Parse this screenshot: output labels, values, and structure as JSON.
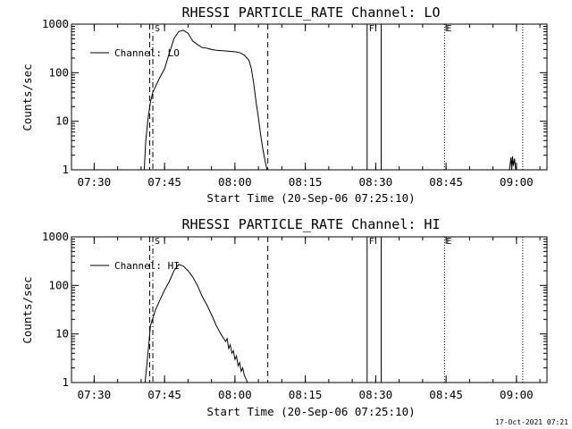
{
  "timestamp": "17-Oct-2021 07:21",
  "chart_data": [
    {
      "type": "line",
      "title": "RHESSI PARTICLE_RATE Channel: LO",
      "xlabel": "Start Time (20-Sep-06 07:25:10)",
      "ylabel": "Counts/sec",
      "y_scale": "log",
      "ylim": [
        1,
        1000
      ],
      "xlim": [
        "07:25:10",
        "09:06:30"
      ],
      "x_ticks": [
        "07:30",
        "07:45",
        "08:00",
        "08:15",
        "08:30",
        "08:45",
        "09:00"
      ],
      "y_ticks": [
        "1",
        "10",
        "100",
        "1000"
      ],
      "legend": {
        "placement": "top-left",
        "label": "Channel: LO"
      },
      "markers": [
        {
          "label": "S",
          "time": "07:42:30",
          "style": "dash-dot"
        },
        {
          "label": "F",
          "time": "08:28:10",
          "style": "solid"
        },
        {
          "label": "E",
          "time": "08:44:40",
          "style": "dotted"
        }
      ],
      "interval_lines": [
        {
          "time": "07:41:50",
          "style": "dashed"
        },
        {
          "time": "08:07:00",
          "style": "dashed"
        },
        {
          "time": "08:31:10",
          "style": "solid"
        },
        {
          "time": "09:01:20",
          "style": "dotted"
        }
      ],
      "series": [
        {
          "name": "Channel: LO",
          "segments": [
            {
              "x": [
                "07:40:40",
                "07:41:00",
                "07:41:30",
                "07:42:00",
                "07:42:30",
                "07:43:00",
                "07:44:00",
                "07:45:00",
                "07:46:00",
                "07:47:00",
                "07:48:00",
                "07:49:00",
                "07:50:00",
                "07:51:00",
                "07:52:00",
                "07:53:00",
                "07:54:00",
                "07:55:00",
                "07:56:00",
                "07:57:00",
                "07:58:00",
                "07:59:00",
                "08:00:00",
                "08:01:00",
                "08:02:00",
                "08:03:00",
                "08:03:30",
                "08:04:00",
                "08:04:30",
                "08:05:00",
                "08:05:30",
                "08:06:00",
                "08:06:30",
                "08:06:50"
              ],
              "y": [
                1,
                4,
                12,
                25,
                40,
                50,
                80,
                120,
                250,
                500,
                700,
                750,
                650,
                450,
                380,
                330,
                320,
                300,
                290,
                285,
                280,
                275,
                270,
                260,
                230,
                180,
                120,
                60,
                25,
                12,
                5,
                2.5,
                1.4,
                1
              ]
            },
            {
              "x": [
                "08:58:30",
                "08:58:50",
                "08:59:00",
                "08:59:10",
                "08:59:20",
                "08:59:35",
                "08:59:50"
              ],
              "y": [
                1,
                1.8,
                1,
                1.9,
                1.2,
                1.7,
                1
              ]
            }
          ]
        }
      ]
    },
    {
      "type": "line",
      "title": "RHESSI PARTICLE_RATE Channel: HI",
      "xlabel": "Start Time (20-Sep-06 07:25:10)",
      "ylabel": "Counts/sec",
      "y_scale": "log",
      "ylim": [
        1,
        1000
      ],
      "xlim": [
        "07:25:10",
        "09:06:30"
      ],
      "x_ticks": [
        "07:30",
        "07:45",
        "08:00",
        "08:15",
        "08:30",
        "08:45",
        "09:00"
      ],
      "y_ticks": [
        "1",
        "10",
        "100",
        "1000"
      ],
      "legend": {
        "placement": "top-left",
        "label": "Channel: HI"
      },
      "markers": [
        {
          "label": "S",
          "time": "07:42:30",
          "style": "dash-dot"
        },
        {
          "label": "F",
          "time": "08:28:10",
          "style": "solid"
        },
        {
          "label": "E",
          "time": "08:44:40",
          "style": "dotted"
        }
      ],
      "interval_lines": [
        {
          "time": "07:41:50",
          "style": "dashed"
        },
        {
          "time": "08:07:00",
          "style": "dashed"
        },
        {
          "time": "08:31:10",
          "style": "solid"
        },
        {
          "time": "09:01:20",
          "style": "dotted"
        }
      ],
      "series": [
        {
          "name": "Channel: HI",
          "segments": [
            {
              "x": [
                "07:40:50",
                "07:41:20",
                "07:42:00",
                "07:43:00",
                "07:44:00",
                "07:45:00",
                "07:46:00",
                "07:47:00",
                "07:48:00",
                "07:49:00",
                "07:50:00",
                "07:51:00",
                "07:52:00",
                "07:53:00",
                "07:54:00",
                "07:55:00",
                "07:56:00",
                "07:57:00",
                "07:58:00",
                "07:58:20",
                "07:58:40",
                "07:59:00",
                "07:59:20",
                "07:59:40",
                "08:00:00",
                "08:00:20",
                "08:00:40",
                "08:01:00",
                "08:01:20",
                "08:01:40",
                "08:02:00",
                "08:02:20",
                "08:02:40"
              ],
              "y": [
                1,
                3,
                15,
                30,
                50,
                80,
                120,
                200,
                270,
                250,
                200,
                150,
                100,
                60,
                40,
                25,
                15,
                10,
                7,
                8,
                5,
                6,
                4,
                4.5,
                3,
                3.5,
                2.2,
                2.6,
                1.7,
                2,
                1.4,
                1.2,
                1
              ]
            }
          ]
        }
      ]
    }
  ]
}
